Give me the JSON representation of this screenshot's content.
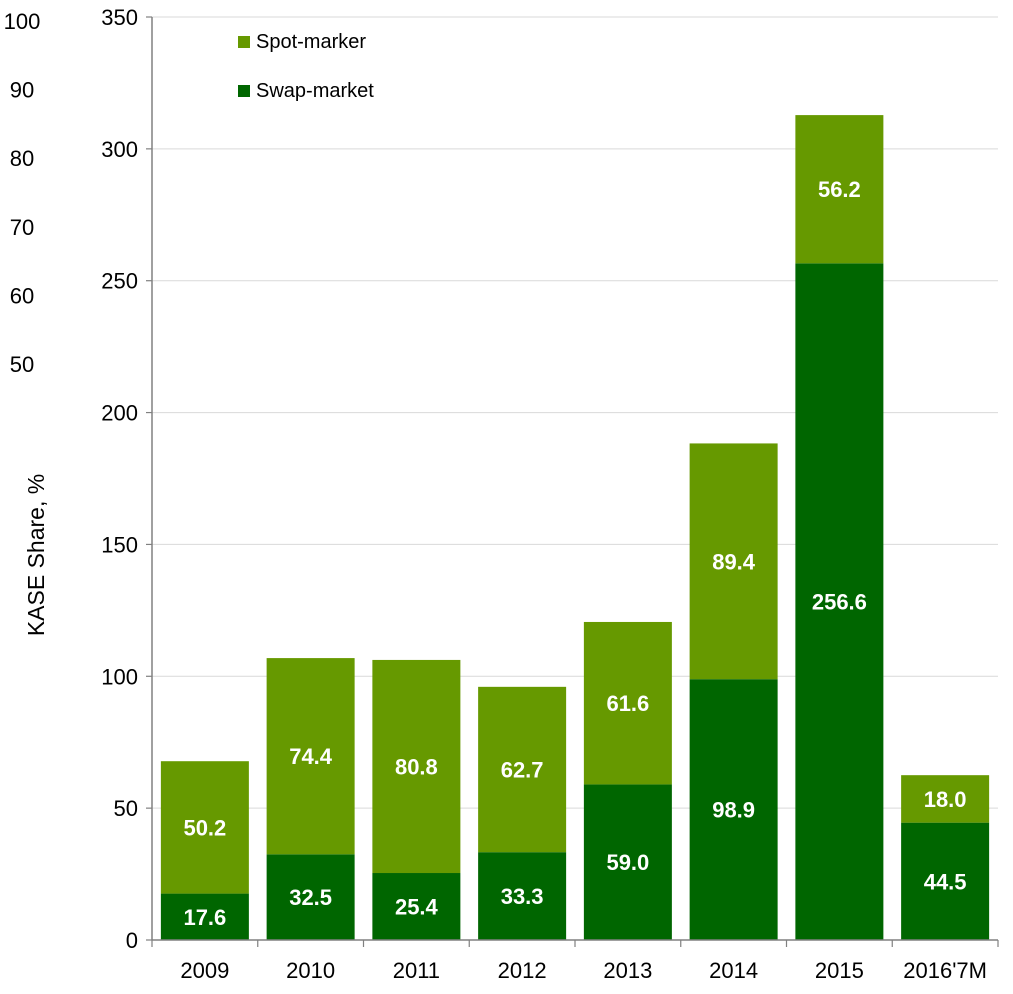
{
  "chart_data": {
    "type": "bar",
    "stacked": true,
    "categories": [
      "2009",
      "2010",
      "2011",
      "2012",
      "2013",
      "2014",
      "2015",
      "2016'7M"
    ],
    "series": [
      {
        "name": "Swap-market",
        "values": [
          17.6,
          32.5,
          25.4,
          33.3,
          59.0,
          98.9,
          256.6,
          44.5
        ],
        "labels": [
          "17.6",
          "32.5",
          "25.4",
          "33.3",
          "59.0",
          "98.9",
          "256.6",
          "44.5"
        ],
        "color": "#006600"
      },
      {
        "name": "Spot-marker",
        "values": [
          50.2,
          74.4,
          80.8,
          62.7,
          61.6,
          89.4,
          56.2,
          18.0
        ],
        "labels": [
          "50.2",
          "74.4",
          "80.8",
          "62.7",
          "61.6",
          "89.4",
          "56.2",
          "18.0"
        ],
        "color": "#669900"
      }
    ],
    "ylim": [
      0,
      350
    ],
    "yticks": [
      "0",
      "50",
      "100",
      "150",
      "200",
      "250",
      "300",
      "350"
    ],
    "y2ticks": [
      "50",
      "60",
      "70",
      "80",
      "90",
      "100"
    ],
    "y2label": "KASE Share, %",
    "grid": true,
    "legend": "top-left",
    "legend_items": [
      "Spot-marker",
      "Swap-market"
    ]
  }
}
